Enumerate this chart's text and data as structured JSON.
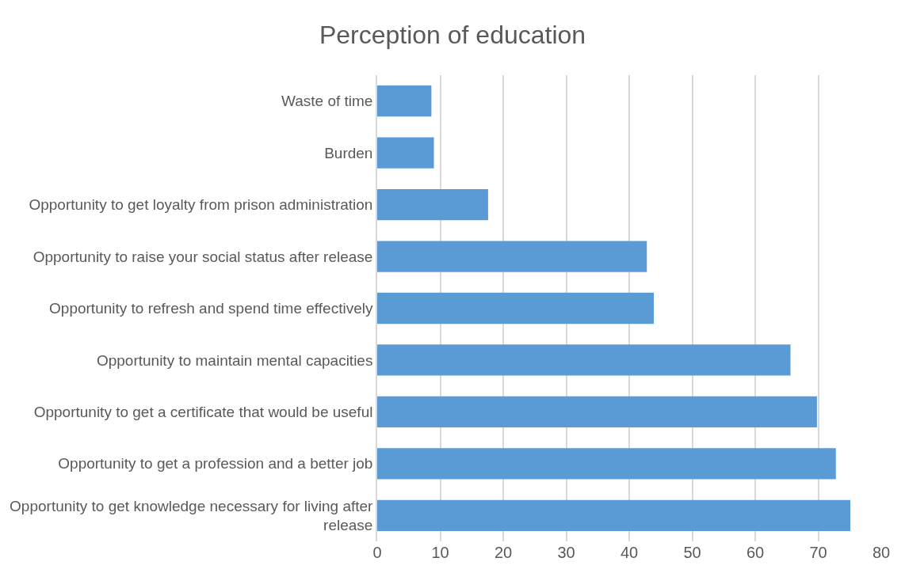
{
  "chart_data": {
    "type": "bar",
    "orientation": "horizontal",
    "title": "Perception of education",
    "categories": [
      "Waste of time",
      "Burden",
      "Opportunity to get loyalty from prison administration",
      "Opportunity to raise your social status after release",
      "Opportunity to refresh and spend time effectively",
      "Opportunity to maintain mental capacities",
      "Opportunity to get a certificate that would be useful",
      "Opportunity to get a profession and a better job",
      "Opportunity to get knowledge necessary for living after release"
    ],
    "values": [
      8.6,
      9.0,
      17.6,
      42.8,
      43.9,
      65.6,
      69.8,
      72.8,
      75.1
    ],
    "color": "#5b9bd5",
    "xlim": [
      0,
      80
    ],
    "xticks": [
      0,
      10,
      20,
      30,
      40,
      50,
      60,
      70,
      80
    ],
    "grid": "x"
  }
}
